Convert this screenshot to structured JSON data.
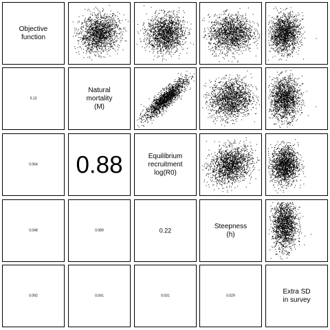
{
  "chart_data": {
    "type": "scatter",
    "title": "",
    "variables": [
      {
        "lines": [
          "Objective",
          "function"
        ]
      },
      {
        "lines": [
          "Natural",
          "mortality",
          "(M)"
        ]
      },
      {
        "lines": [
          "Equilibrium",
          "recruitment",
          "log(R0)"
        ]
      },
      {
        "lines": [
          "Steepness",
          "(h)"
        ]
      },
      {
        "lines": [
          "Extra SD",
          "in survey"
        ]
      }
    ],
    "correlations": [
      {
        "row": 1,
        "col": 0,
        "value": "0.13"
      },
      {
        "row": 2,
        "col": 0,
        "value": "0.064"
      },
      {
        "row": 2,
        "col": 1,
        "value": "0.88"
      },
      {
        "row": 3,
        "col": 0,
        "value": "0.048"
      },
      {
        "row": 3,
        "col": 1,
        "value": "0.089"
      },
      {
        "row": 3,
        "col": 2,
        "value": "0.22"
      },
      {
        "row": 4,
        "col": 0,
        "value": "0.092"
      },
      {
        "row": 4,
        "col": 1,
        "value": "0.041"
      },
      {
        "row": 4,
        "col": 2,
        "value": "0.031"
      },
      {
        "row": 4,
        "col": 3,
        "value": "0.029"
      }
    ],
    "scatter_panels": [
      {
        "row": 0,
        "col": 1,
        "correlation": 0.13,
        "spread_x": 0.16,
        "spread_y": 0.15,
        "center": [
          0.5,
          0.5
        ]
      },
      {
        "row": 0,
        "col": 2,
        "correlation": 0.06,
        "spread_x": 0.15,
        "spread_y": 0.15,
        "center": [
          0.5,
          0.5
        ]
      },
      {
        "row": 0,
        "col": 3,
        "correlation": 0.05,
        "spread_x": 0.18,
        "spread_y": 0.15,
        "center": [
          0.5,
          0.5
        ]
      },
      {
        "row": 0,
        "col": 4,
        "correlation": 0.09,
        "spread_x": 0.12,
        "spread_y": 0.15,
        "center": [
          0.3,
          0.5
        ]
      },
      {
        "row": 1,
        "col": 2,
        "correlation": 0.88,
        "spread_x": 0.17,
        "spread_y": 0.16,
        "center": [
          0.5,
          0.5
        ]
      },
      {
        "row": 1,
        "col": 3,
        "correlation": 0.09,
        "spread_x": 0.17,
        "spread_y": 0.16,
        "center": [
          0.5,
          0.5
        ]
      },
      {
        "row": 1,
        "col": 4,
        "correlation": 0.04,
        "spread_x": 0.12,
        "spread_y": 0.17,
        "center": [
          0.3,
          0.5
        ]
      },
      {
        "row": 2,
        "col": 3,
        "correlation": 0.22,
        "spread_x": 0.17,
        "spread_y": 0.15,
        "center": [
          0.5,
          0.5
        ]
      },
      {
        "row": 2,
        "col": 4,
        "correlation": 0.03,
        "spread_x": 0.11,
        "spread_y": 0.15,
        "center": [
          0.3,
          0.5
        ]
      },
      {
        "row": 3,
        "col": 4,
        "correlation": 0.03,
        "spread_x": 0.1,
        "spread_y": 0.2,
        "center": [
          0.3,
          0.4
        ]
      }
    ],
    "points_per_panel": 1600,
    "grid": false,
    "legend": "none"
  }
}
